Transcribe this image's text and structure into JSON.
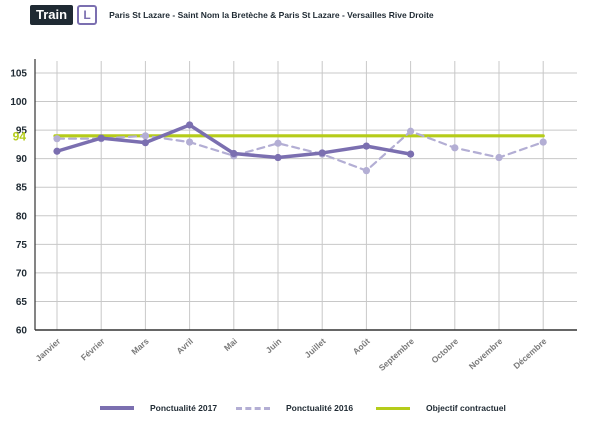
{
  "header": {
    "badge": "Train",
    "line_letter": "L",
    "route": "Paris St Lazare - Saint Nom la Bretèche & Paris St Lazare - Versailles Rive Droite"
  },
  "colors": {
    "series_2017": "#7b6fb0",
    "series_2016": "#b3aed4",
    "objective": "#b5cc1a",
    "grid": "#c8c8c8",
    "axis": "#333333",
    "objective_label": "#b5cc1a"
  },
  "chart_data": {
    "type": "line",
    "categories": [
      "Janvier",
      "Février",
      "Mars",
      "Avril",
      "Mai",
      "Juin",
      "Juillet",
      "Août",
      "Septembre",
      "Octobre",
      "Novembre",
      "Décembre"
    ],
    "ylim": [
      60,
      105
    ],
    "yticks": [
      "60",
      "65",
      "70",
      "75",
      "80",
      "85",
      "90",
      "95",
      "100",
      "105"
    ],
    "objective_label": "94",
    "series": [
      {
        "name": "Ponctualité 2017",
        "style": "solid",
        "values": [
          91.3,
          93.6,
          92.8,
          95.9,
          90.9,
          90.2,
          91.0,
          92.2,
          90.8,
          null,
          null,
          null
        ]
      },
      {
        "name": "Ponctualité 2016",
        "style": "dashed",
        "values": [
          93.5,
          93.5,
          94.0,
          92.9,
          90.5,
          92.7,
          90.8,
          87.9,
          94.8,
          91.9,
          90.2,
          92.9
        ]
      },
      {
        "name": "Objectif contractuel",
        "style": "solid",
        "values": [
          94,
          94,
          94,
          94,
          94,
          94,
          94,
          94,
          94,
          94,
          94,
          94
        ]
      }
    ],
    "grid": true,
    "legend_position": "bottom"
  },
  "legend": {
    "items": [
      {
        "label": "Ponctualité 2017"
      },
      {
        "label": "Ponctualité 2016"
      },
      {
        "label": "Objectif contractuel"
      }
    ]
  }
}
